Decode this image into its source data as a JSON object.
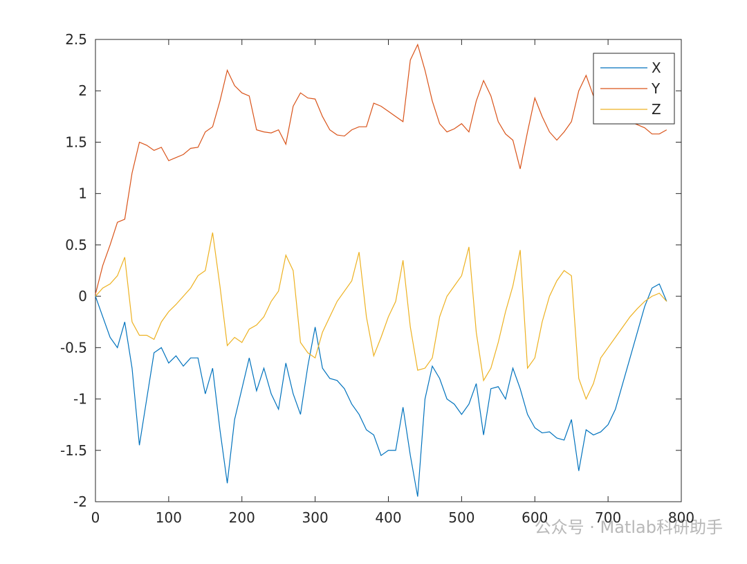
{
  "chart_data": {
    "type": "line",
    "x": [
      0,
      10,
      20,
      30,
      40,
      50,
      60,
      70,
      80,
      90,
      100,
      110,
      120,
      130,
      140,
      150,
      160,
      170,
      180,
      190,
      200,
      210,
      220,
      230,
      240,
      250,
      260,
      270,
      280,
      290,
      300,
      310,
      320,
      330,
      340,
      350,
      360,
      370,
      380,
      390,
      400,
      410,
      420,
      430,
      440,
      450,
      460,
      470,
      480,
      490,
      500,
      510,
      520,
      530,
      540,
      550,
      560,
      570,
      580,
      590,
      600,
      610,
      620,
      630,
      640,
      650,
      660,
      670,
      680,
      690,
      700,
      710,
      720,
      730,
      740,
      750,
      760,
      770,
      780
    ],
    "series": [
      {
        "name": "X",
        "color": "#0072BD",
        "values": [
          0,
          -0.2,
          -0.4,
          -0.5,
          -0.25,
          -0.7,
          -1.45,
          -1.0,
          -0.55,
          -0.5,
          -0.65,
          -0.58,
          -0.68,
          -0.6,
          -0.6,
          -0.95,
          -0.7,
          -1.3,
          -1.82,
          -1.2,
          -0.9,
          -0.6,
          -0.92,
          -0.7,
          -0.95,
          -1.1,
          -0.65,
          -0.95,
          -1.15,
          -0.68,
          -0.3,
          -0.7,
          -0.8,
          -0.82,
          -0.9,
          -1.05,
          -1.15,
          -1.3,
          -1.35,
          -1.55,
          -1.5,
          -1.5,
          -1.08,
          -1.55,
          -1.95,
          -1.0,
          -0.68,
          -0.8,
          -1.0,
          -1.05,
          -1.15,
          -1.05,
          -0.85,
          -1.35,
          -0.9,
          -0.88,
          -1.0,
          -0.7,
          -0.9,
          -1.15,
          -1.28,
          -1.33,
          -1.32,
          -1.38,
          -1.4,
          -1.2,
          -1.7,
          -1.3,
          -1.35,
          -1.32,
          -1.25,
          -1.1,
          -0.85,
          -0.6,
          -0.35,
          -0.1,
          0.08,
          0.12,
          -0.05
        ]
      },
      {
        "name": "Y",
        "color": "#D95319",
        "values": [
          0.02,
          0.3,
          0.5,
          0.72,
          0.75,
          1.2,
          1.5,
          1.47,
          1.42,
          1.45,
          1.32,
          1.35,
          1.38,
          1.44,
          1.45,
          1.6,
          1.65,
          1.9,
          2.2,
          2.05,
          1.98,
          1.95,
          1.62,
          1.6,
          1.59,
          1.62,
          1.48,
          1.85,
          1.98,
          1.93,
          1.92,
          1.75,
          1.62,
          1.57,
          1.56,
          1.62,
          1.65,
          1.65,
          1.88,
          1.85,
          1.8,
          1.75,
          1.7,
          2.3,
          2.45,
          2.2,
          1.9,
          1.68,
          1.6,
          1.63,
          1.68,
          1.6,
          1.9,
          2.1,
          1.95,
          1.7,
          1.58,
          1.52,
          1.24,
          1.6,
          1.93,
          1.75,
          1.6,
          1.52,
          1.6,
          1.7,
          2.0,
          2.15,
          1.95,
          1.8,
          1.68,
          1.7,
          1.72,
          1.7,
          1.67,
          1.64,
          1.58,
          1.58,
          1.62
        ]
      },
      {
        "name": "Z",
        "color": "#EDB120",
        "values": [
          0,
          0.08,
          0.12,
          0.2,
          0.38,
          -0.25,
          -0.38,
          -0.38,
          -0.42,
          -0.25,
          -0.15,
          -0.08,
          0,
          0.08,
          0.2,
          0.25,
          0.62,
          0.1,
          -0.48,
          -0.4,
          -0.45,
          -0.32,
          -0.28,
          -0.2,
          -0.05,
          0.05,
          0.4,
          0.25,
          -0.45,
          -0.55,
          -0.6,
          -0.35,
          -0.2,
          -0.05,
          0.05,
          0.15,
          0.43,
          -0.2,
          -0.58,
          -0.4,
          -0.2,
          -0.05,
          0.35,
          -0.3,
          -0.72,
          -0.7,
          -0.6,
          -0.2,
          0,
          0.1,
          0.2,
          0.48,
          -0.35,
          -0.82,
          -0.7,
          -0.45,
          -0.15,
          0.1,
          0.45,
          -0.7,
          -0.6,
          -0.25,
          0,
          0.15,
          0.25,
          0.2,
          -0.8,
          -1.0,
          -0.85,
          -0.6,
          -0.5,
          -0.4,
          -0.3,
          -0.2,
          -0.12,
          -0.05,
          0,
          0.03,
          -0.05
        ]
      }
    ],
    "xlim": [
      0,
      800
    ],
    "xticks": [
      0,
      100,
      200,
      300,
      400,
      500,
      600,
      700,
      800
    ],
    "ylim": [
      -2,
      2.5
    ],
    "yticks": [
      -2,
      -1.5,
      -1,
      -0.5,
      0,
      0.5,
      1,
      1.5,
      2,
      2.5
    ],
    "legend": "northeast",
    "grid": false
  },
  "watermark": "公众号 · Matlab科研助手"
}
